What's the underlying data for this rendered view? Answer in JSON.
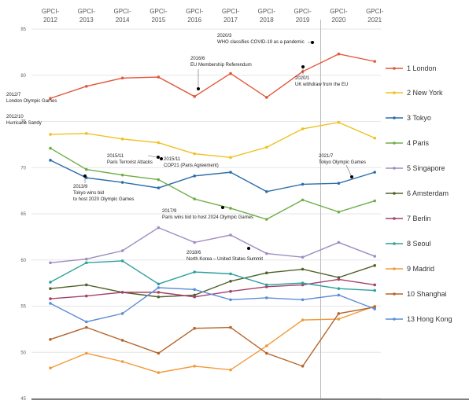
{
  "chart_data": {
    "type": "line",
    "categories": [
      "GPCI-2012",
      "GPCI-2013",
      "GPCI-2014",
      "GPCI-2015",
      "GPCI-2016",
      "GPCI-2017",
      "GPCI-2018",
      "GPCI-2019",
      "GPCI-2020",
      "GPCI-2021"
    ],
    "x_tick_labels": [
      [
        "GPCI-",
        "2012"
      ],
      [
        "GPCI-",
        "2013"
      ],
      [
        "GPCI-",
        "2014"
      ],
      [
        "GPCI-",
        "2015"
      ],
      [
        "GPCI-",
        "2016"
      ],
      [
        "GPCI-",
        "2017"
      ],
      [
        "GPCI-",
        "2018"
      ],
      [
        "GPCI-",
        "2019"
      ],
      [
        "GPCI-",
        "2020"
      ],
      [
        "GPCI-",
        "2021"
      ]
    ],
    "y_ticks": [
      "45",
      "50",
      "55",
      "60",
      "65",
      "70",
      "75",
      "80",
      "85"
    ],
    "ylim": [
      45,
      85
    ],
    "grid": "horizontal",
    "legend_position": "right",
    "vertical_marker_between": [
      7,
      8
    ],
    "series": [
      {
        "name": "1 London",
        "color": "#E2563B",
        "values": [
          77.5,
          78.8,
          79.7,
          79.8,
          77.7,
          80.2,
          77.6,
          80.4,
          82.3,
          81.5
        ]
      },
      {
        "name": "2 New York",
        "color": "#F0C020",
        "values": [
          73.6,
          73.7,
          73.1,
          72.7,
          71.5,
          71.1,
          72.2,
          74.2,
          74.9,
          73.2
        ]
      },
      {
        "name": "3 Tokyo",
        "color": "#2C6EAB",
        "values": [
          70.8,
          68.9,
          68.4,
          67.8,
          69.1,
          69.5,
          67.4,
          68.2,
          68.3,
          69.5
        ]
      },
      {
        "name": "4 Paris",
        "color": "#6FAD47",
        "values": [
          72.1,
          69.8,
          69.2,
          68.7,
          66.6,
          65.6,
          64.4,
          66.5,
          65.2,
          66.4
        ]
      },
      {
        "name": "5 Singapore",
        "color": "#9E8DC0",
        "values": [
          59.7,
          60.1,
          61.0,
          63.5,
          61.9,
          62.7,
          60.7,
          60.3,
          61.9,
          60.4
        ]
      },
      {
        "name": "6 Amsterdam",
        "color": "#4F6228",
        "values": [
          56.9,
          57.3,
          56.5,
          56.0,
          56.2,
          57.7,
          58.6,
          59.0,
          58.1,
          59.4
        ]
      },
      {
        "name": "7 Berlin",
        "color": "#A5406B",
        "values": [
          55.8,
          56.1,
          56.5,
          56.5,
          56.0,
          56.6,
          57.1,
          57.3,
          57.9,
          57.3
        ]
      },
      {
        "name": "8 Seoul",
        "color": "#2EA09E",
        "values": [
          57.6,
          59.7,
          59.9,
          57.4,
          58.7,
          58.5,
          57.3,
          57.5,
          56.9,
          56.7
        ]
      },
      {
        "name": "9 Madrid",
        "color": "#F29A3A",
        "values": [
          48.3,
          49.9,
          49.0,
          47.8,
          48.5,
          48.1,
          50.7,
          53.5,
          53.6,
          55.0
        ]
      },
      {
        "name": "10 Shanghai",
        "color": "#B5642A",
        "values": [
          51.4,
          52.7,
          51.3,
          49.9,
          52.6,
          52.7,
          49.9,
          48.5,
          54.2,
          54.9
        ]
      },
      {
        "name": "13 Hong Kong",
        "color": "#5D8DD8",
        "values": [
          55.3,
          53.3,
          54.2,
          57.0,
          56.8,
          55.7,
          55.9,
          55.7,
          56.2,
          54.7
        ]
      }
    ],
    "annotations": [
      {
        "lines": [
          "2012/7",
          "London Olympic Games"
        ]
      },
      {
        "lines": [
          "2012/10",
          "Hurricane Sandy"
        ]
      },
      {
        "lines": [
          "2013/9",
          "Tokyo wins bid",
          "to host 2020 Olympic Games"
        ]
      },
      {
        "lines": [
          "2015/11",
          "Paris Terrorist Attacks"
        ]
      },
      {
        "lines": [
          "2015/11",
          "COP21 (Paris Agreement)"
        ]
      },
      {
        "lines": [
          "2016/6",
          "EU Membership Referendum"
        ]
      },
      {
        "lines": [
          "2017/9",
          "Paris wins bid to host 2024 Olympic Games"
        ]
      },
      {
        "lines": [
          "2018/6",
          "North Korea – United States Summit"
        ]
      },
      {
        "lines": [
          "2020/3",
          "WHO classifies COVID-19 as a pandemic"
        ]
      },
      {
        "lines": [
          "2020/1",
          "UK withdraw from the EU"
        ]
      },
      {
        "lines": [
          "2021/7",
          "Tokyo Olympic Games"
        ]
      }
    ]
  }
}
